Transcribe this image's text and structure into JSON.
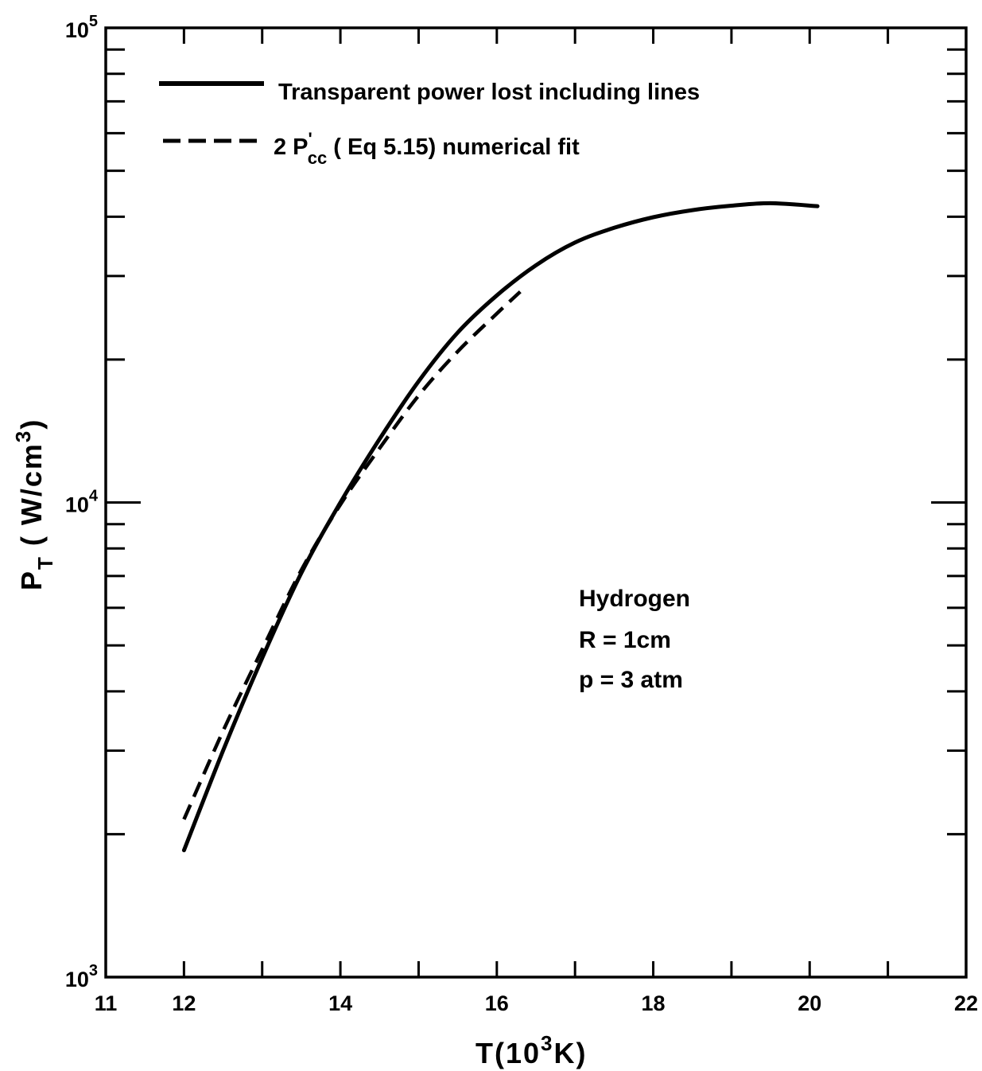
{
  "chart_data": {
    "type": "line",
    "xlabel": "T(10³K)",
    "ylabel": "P_T (W/cm³)",
    "x_ticks": [
      "11",
      "12",
      "14",
      "16",
      "18",
      "20",
      "22"
    ],
    "y_ticks": [
      {
        "base": "10",
        "exp": "3"
      },
      {
        "base": "10",
        "exp": "4"
      },
      {
        "base": "10",
        "exp": "5"
      }
    ],
    "xlim": [
      11,
      22
    ],
    "ylim": [
      1000,
      100000
    ],
    "y_scale": "log",
    "grid": false,
    "legend_position": "top-left",
    "series": [
      {
        "name": "Transparent power lost including lines",
        "style": "solid",
        "x": [
          12.0,
          12.5,
          13.0,
          13.5,
          14.0,
          14.5,
          15.0,
          15.5,
          16.0,
          16.5,
          17.0,
          17.5,
          18.0,
          18.5,
          19.0,
          19.5,
          20.1
        ],
        "y": [
          1850,
          3000,
          4700,
          7100,
          10000,
          13600,
          18000,
          22800,
          27300,
          31600,
          35300,
          37900,
          39900,
          41300,
          42200,
          42700,
          42100
        ]
      },
      {
        "name": "2 P'cc (Eq 5.15) numerical fit",
        "style": "dashed",
        "x": [
          12.0,
          12.5,
          13.0,
          13.5,
          14.0,
          14.5,
          15.0,
          15.5,
          16.0,
          16.3
        ],
        "y": [
          2150,
          3300,
          4900,
          7200,
          9900,
          13000,
          16800,
          20800,
          25000,
          27800
        ]
      }
    ],
    "annotations": [
      "Hydrogen",
      "R = 1cm",
      "p = 3 atm"
    ]
  },
  "legend": {
    "solid_label": "Transparent power lost including lines",
    "dashed_prefix": "2 P",
    "dashed_sup": "'",
    "dashed_sub": "cc",
    "dashed_suffix": " ( Eq 5.15) numerical fit"
  },
  "axes": {
    "x_title_main": "T(10",
    "x_title_sup": "3",
    "x_title_end": "K)",
    "y_title_main": "P",
    "y_title_sub": "T",
    "y_title_rest": " ( W/cm",
    "y_title_sup": "3",
    "y_title_end": ")"
  },
  "colors": {
    "ink": "#000000",
    "background": "#ffffff"
  }
}
